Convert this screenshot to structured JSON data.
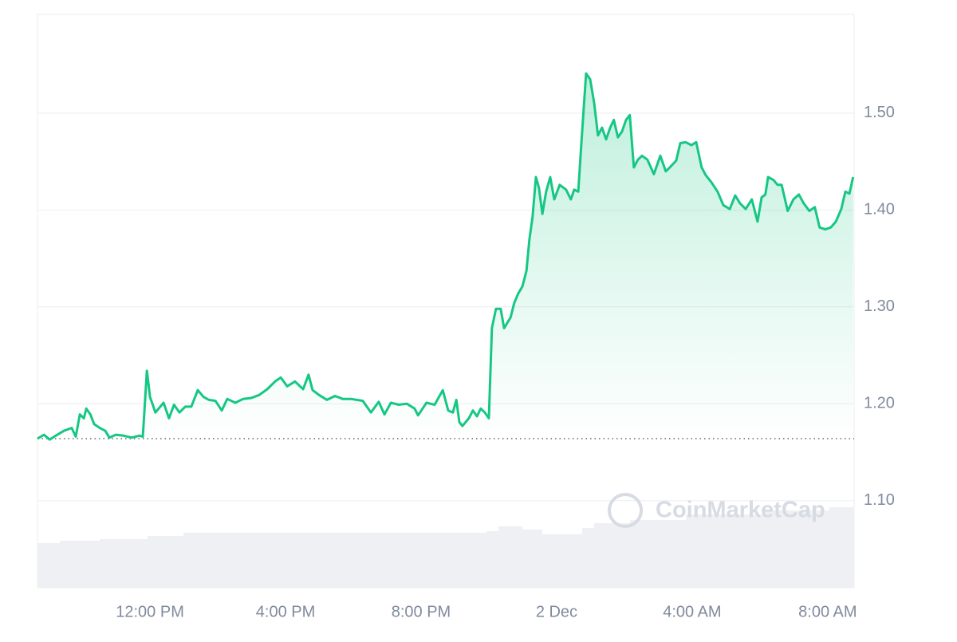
{
  "chart_data": {
    "type": "line",
    "watermark": "CoinMarketCap",
    "color": "#16c784",
    "baseline": 1.164,
    "grid": true,
    "xlim": [
      8.68,
      32.78
    ],
    "ylim": [
      1.01,
      1.602
    ],
    "xticks": [
      {
        "value": 12,
        "label": "12:00 PM"
      },
      {
        "value": 16,
        "label": "4:00 PM"
      },
      {
        "value": 20,
        "label": "8:00 PM"
      },
      {
        "value": 24,
        "label": "2 Dec"
      },
      {
        "value": 28,
        "label": "4:00 AM"
      },
      {
        "value": 32,
        "label": "8:00 AM"
      }
    ],
    "yticks": [
      {
        "value": 1.1,
        "label": "1.10"
      },
      {
        "value": 1.2,
        "label": "1.20"
      },
      {
        "value": 1.3,
        "label": "1.30"
      },
      {
        "value": 1.4,
        "label": "1.40"
      },
      {
        "value": 1.5,
        "label": "1.50"
      }
    ],
    "x": [
      8.68,
      8.87,
      9.04,
      9.22,
      9.46,
      9.69,
      9.81,
      9.93,
      10.05,
      10.12,
      10.24,
      10.35,
      10.52,
      10.68,
      10.8,
      10.99,
      11.22,
      11.46,
      11.69,
      11.79,
      11.91,
      12.0,
      12.16,
      12.4,
      12.56,
      12.71,
      12.87,
      13.04,
      13.22,
      13.41,
      13.58,
      13.74,
      13.93,
      14.12,
      14.28,
      14.52,
      14.75,
      14.99,
      15.22,
      15.46,
      15.69,
      15.86,
      16.05,
      16.28,
      16.52,
      16.68,
      16.8,
      16.99,
      17.22,
      17.46,
      17.69,
      17.93,
      18.28,
      18.52,
      18.75,
      18.92,
      19.11,
      19.34,
      19.58,
      19.81,
      19.91,
      20.16,
      20.4,
      20.64,
      20.8,
      20.94,
      21.04,
      21.13,
      21.22,
      21.41,
      21.53,
      21.65,
      21.76,
      21.88,
      22.0,
      22.09,
      22.21,
      22.35,
      22.45,
      22.64,
      22.75,
      22.87,
      22.99,
      23.11,
      23.2,
      23.29,
      23.39,
      23.48,
      23.58,
      23.69,
      23.81,
      23.93,
      24.09,
      24.28,
      24.42,
      24.52,
      24.64,
      24.73,
      24.87,
      24.99,
      25.11,
      25.22,
      25.34,
      25.46,
      25.58,
      25.69,
      25.81,
      25.93,
      26.05,
      26.16,
      26.28,
      26.4,
      26.52,
      26.68,
      26.87,
      27.06,
      27.22,
      27.34,
      27.53,
      27.65,
      27.81,
      27.98,
      28.12,
      28.28,
      28.4,
      28.56,
      28.75,
      28.92,
      29.11,
      29.27,
      29.41,
      29.58,
      29.76,
      29.93,
      30.05,
      30.16,
      30.24,
      30.4,
      30.52,
      30.64,
      30.82,
      30.99,
      31.15,
      31.29,
      31.46,
      31.62,
      31.76,
      31.93,
      32.09,
      32.24,
      32.4,
      32.52,
      32.64,
      32.75
    ],
    "values": [
      1.164,
      1.168,
      1.163,
      1.167,
      1.172,
      1.175,
      1.166,
      1.189,
      1.185,
      1.195,
      1.189,
      1.179,
      1.175,
      1.172,
      1.165,
      1.168,
      1.167,
      1.165,
      1.167,
      1.166,
      1.234,
      1.207,
      1.191,
      1.201,
      1.185,
      1.199,
      1.191,
      1.197,
      1.197,
      1.214,
      1.207,
      1.204,
      1.203,
      1.193,
      1.205,
      1.201,
      1.205,
      1.206,
      1.209,
      1.215,
      1.223,
      1.227,
      1.218,
      1.223,
      1.215,
      1.23,
      1.214,
      1.209,
      1.204,
      1.208,
      1.205,
      1.205,
      1.203,
      1.191,
      1.202,
      1.189,
      1.201,
      1.199,
      1.2,
      1.195,
      1.188,
      1.201,
      1.199,
      1.214,
      1.193,
      1.191,
      1.204,
      1.181,
      1.177,
      1.185,
      1.193,
      1.187,
      1.195,
      1.191,
      1.185,
      1.278,
      1.298,
      1.298,
      1.278,
      1.289,
      1.304,
      1.314,
      1.321,
      1.337,
      1.37,
      1.393,
      1.434,
      1.423,
      1.396,
      1.419,
      1.434,
      1.411,
      1.426,
      1.421,
      1.411,
      1.421,
      1.419,
      1.469,
      1.541,
      1.535,
      1.51,
      1.477,
      1.485,
      1.473,
      1.485,
      1.493,
      1.475,
      1.481,
      1.493,
      1.498,
      1.444,
      1.452,
      1.456,
      1.452,
      1.437,
      1.456,
      1.44,
      1.444,
      1.451,
      1.469,
      1.47,
      1.467,
      1.47,
      1.444,
      1.436,
      1.429,
      1.419,
      1.405,
      1.401,
      1.415,
      1.407,
      1.401,
      1.411,
      1.388,
      1.413,
      1.416,
      1.434,
      1.431,
      1.426,
      1.426,
      1.399,
      1.411,
      1.416,
      1.407,
      1.399,
      1.403,
      1.382,
      1.38,
      1.382,
      1.388,
      1.401,
      1.419,
      1.417,
      1.434
    ]
  }
}
